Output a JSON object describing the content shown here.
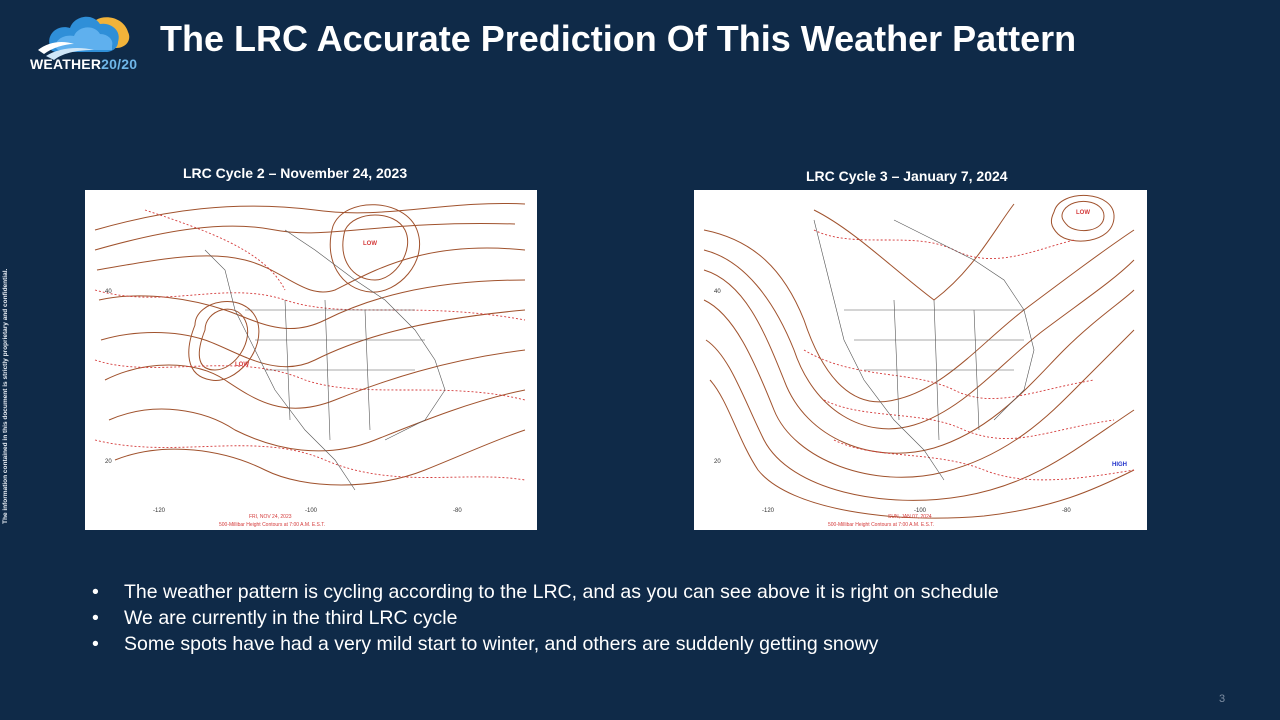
{
  "brand": {
    "name_main": "WEATHER",
    "name_accent": "20/20"
  },
  "title": "The LRC Accurate Prediction Of This Weather Pattern",
  "side_note": "The information contained in this document is strictly proprietary and confidential.",
  "maps": [
    {
      "caption": "LRC Cycle 2 – November 24, 2023",
      "footer_date": "FRI, NOV 24, 2023",
      "footer_desc": "500-Millibar Height Contours at 7:00 A.M. E.S.T.",
      "low_labels": [
        "LOW",
        "LOW"
      ],
      "lat_labels": [
        "40",
        "20"
      ],
      "lon_labels": [
        "-120",
        "-100",
        "-80"
      ]
    },
    {
      "caption": "LRC Cycle 3 – January 7, 2024",
      "footer_date": "SUN, JAN 07, 2024",
      "footer_desc": "500-Millibar Height Contours at 7:00 A.M. E.S.T.",
      "low_labels": [
        "LOW"
      ],
      "high_label": "HIGH",
      "lat_labels": [
        "40",
        "20"
      ],
      "lon_labels": [
        "-120",
        "-100",
        "-80"
      ]
    }
  ],
  "bullets": [
    "The weather pattern is cycling according to the LRC, and as you can see above it is right on schedule",
    "We are currently in the third LRC cycle",
    "Some spots have had a very mild start to winter, and others are suddenly getting snowy"
  ],
  "bullet_glyph": "•",
  "page_number": "3",
  "colors": {
    "background": "#0f2a48",
    "contour": "#a0522d",
    "dotted": "#d43a3a",
    "accent": "#6fb6e8"
  }
}
